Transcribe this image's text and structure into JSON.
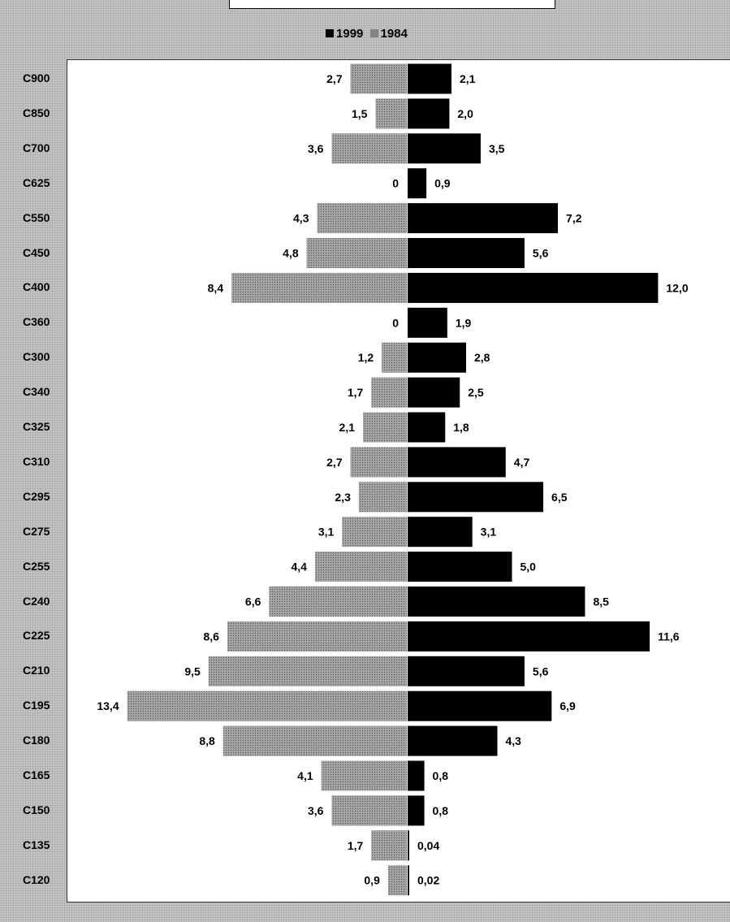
{
  "legend": {
    "series_a": "1999",
    "series_b": "1984"
  },
  "colors": {
    "series_1999": "#000000",
    "series_1984": "#9a9a9a"
  },
  "chart_data": {
    "type": "bar",
    "orientation": "horizontal-diverging",
    "legend_placement": "top-center",
    "categories": [
      "C900",
      "C850",
      "C700",
      "C625",
      "C550",
      "C450",
      "C400",
      "C360",
      "C300",
      "C340",
      "C325",
      "C310",
      "C295",
      "C275",
      "C255",
      "C240",
      "C225",
      "C210",
      "C195",
      "C180",
      "C165",
      "C150",
      "C135",
      "C120"
    ],
    "series": [
      {
        "name": "1999",
        "direction": "right",
        "values": [
          2.1,
          2.0,
          3.5,
          0.9,
          7.2,
          5.6,
          12.0,
          1.9,
          2.8,
          2.5,
          1.8,
          4.7,
          6.5,
          3.1,
          5.0,
          8.5,
          11.6,
          5.6,
          6.9,
          4.3,
          0.8,
          0.8,
          0.04,
          0.02
        ],
        "labels": [
          "2,1",
          "2,0",
          "3,5",
          "0,9",
          "7,2",
          "5,6",
          "12,0",
          "1,9",
          "2,8",
          "2,5",
          "1,8",
          "4,7",
          "6,5",
          "3,1",
          "5,0",
          "8,5",
          "11,6",
          "5,6",
          "6,9",
          "4,3",
          "0,8",
          "0,8",
          "0,04",
          "0,02"
        ]
      },
      {
        "name": "1984",
        "direction": "left",
        "values": [
          2.7,
          1.5,
          3.6,
          0,
          4.3,
          4.8,
          8.4,
          0,
          1.2,
          1.7,
          2.1,
          2.7,
          2.3,
          3.1,
          4.4,
          6.6,
          8.6,
          9.5,
          13.4,
          8.8,
          4.1,
          3.6,
          1.7,
          0.9
        ],
        "labels": [
          "2,7",
          "1,5",
          "3,6",
          "0",
          "4,3",
          "4,8",
          "8,4",
          "0",
          "1,2",
          "1,7",
          "2,1",
          "2,7",
          "2,3",
          "3,1",
          "4,4",
          "6,6",
          "8,6",
          "9,5",
          "13,4",
          "8,8",
          "4,1",
          "3,6",
          "1,7",
          "0,9"
        ]
      }
    ],
    "grid": false
  }
}
